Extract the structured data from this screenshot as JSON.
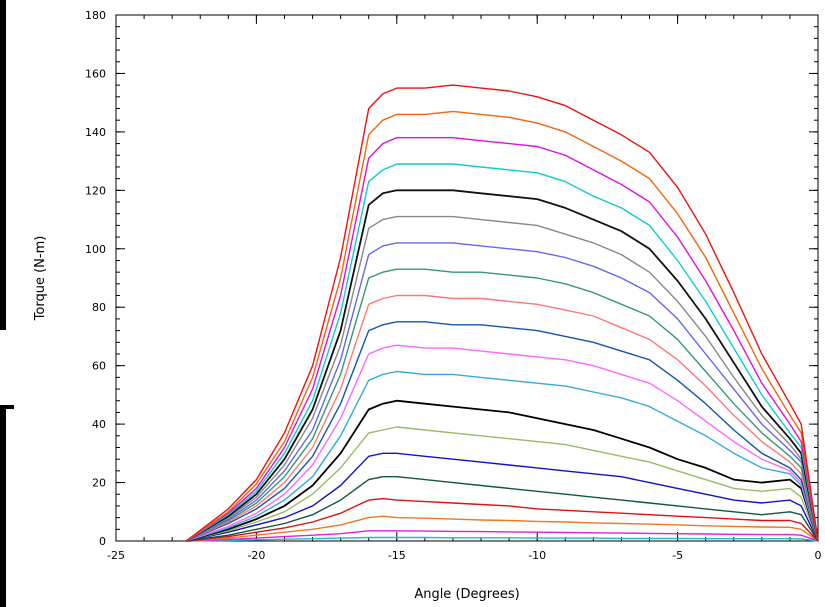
{
  "chart_data": {
    "type": "line",
    "title": "",
    "xlabel": "Angle (Degrees)",
    "ylabel": "Torque (N-m)",
    "xlim": [
      -25,
      0
    ],
    "ylim": [
      0,
      180
    ],
    "xticks": [
      -25,
      -20,
      -15,
      -10,
      -5,
      0
    ],
    "yticks": [
      0,
      20,
      40,
      60,
      80,
      100,
      120,
      140,
      160,
      180
    ],
    "grid": false,
    "legend": "none",
    "x": [
      -22.5,
      -21,
      -20,
      -19,
      -18,
      -17,
      -16,
      -15.5,
      -15,
      -14,
      -13,
      -12,
      -11,
      -10,
      -9,
      -8,
      -7,
      -6,
      -5,
      -4,
      -3,
      -2,
      -1,
      -0.6,
      0
    ],
    "series": [
      {
        "color": "#ee1111",
        "values": [
          0,
          11,
          21,
          37,
          60,
          97,
          148,
          153,
          155,
          155,
          156,
          155,
          154,
          152,
          149,
          144,
          139,
          133,
          121,
          105,
          85,
          64,
          47,
          40,
          0
        ]
      },
      {
        "color": "#ee6611",
        "values": [
          0,
          10,
          19.5,
          34,
          56,
          90,
          139,
          144,
          146,
          146,
          147,
          146,
          145,
          143,
          140,
          135,
          130,
          124,
          112,
          97,
          78,
          59,
          43,
          37,
          0
        ]
      },
      {
        "color": "#dd11dd",
        "values": [
          0,
          9.5,
          18,
          32,
          52,
          84,
          131,
          136,
          138,
          138,
          138,
          137,
          136,
          135,
          132,
          127,
          122,
          116,
          104,
          89,
          72,
          54,
          40,
          34,
          0
        ]
      },
      {
        "color": "#11cccc",
        "values": [
          0,
          9,
          17,
          30,
          48,
          78,
          123,
          127,
          129,
          129,
          129,
          128,
          127,
          126,
          123,
          118,
          114,
          108,
          96,
          82,
          66,
          50,
          37,
          32,
          0
        ]
      },
      {
        "color": "#111111",
        "values": [
          0,
          8.5,
          16,
          28,
          45,
          72,
          115,
          119,
          120,
          120,
          120,
          119,
          118,
          117,
          114,
          110,
          106,
          100,
          89,
          76,
          61,
          46,
          35,
          30,
          0
        ]
      },
      {
        "color": "#888888",
        "values": [
          0,
          8,
          15,
          26,
          42,
          67,
          107,
          110,
          111,
          111,
          111,
          110,
          109,
          108,
          105,
          102,
          98,
          92,
          82,
          70,
          56,
          43,
          33,
          28,
          0
        ]
      },
      {
        "color": "#6666ee",
        "values": [
          0,
          7.5,
          14,
          24,
          38,
          62,
          98,
          101,
          102,
          102,
          102,
          101,
          100,
          99,
          97,
          94,
          90,
          85,
          76,
          64,
          52,
          40,
          31,
          27,
          0
        ]
      },
      {
        "color": "#339977",
        "values": [
          0,
          7,
          13,
          22,
          35,
          57,
          90,
          92,
          93,
          93,
          92,
          92,
          91,
          90,
          88,
          85,
          81,
          77,
          69,
          58,
          47,
          37,
          29,
          25,
          0
        ]
      },
      {
        "color": "#ff7777",
        "values": [
          0,
          6.5,
          12,
          20,
          32,
          52,
          81,
          83,
          84,
          84,
          83,
          83,
          82,
          81,
          79,
          77,
          73,
          69,
          62,
          53,
          43,
          34,
          27,
          23,
          0
        ]
      },
      {
        "color": "#1155aa",
        "values": [
          0,
          6,
          11,
          18,
          29,
          47,
          72,
          74,
          75,
          75,
          74,
          74,
          73,
          72,
          70,
          68,
          65,
          62,
          55,
          47,
          38,
          30,
          25,
          21,
          0
        ]
      },
      {
        "color": "#ff66ff",
        "values": [
          0,
          5,
          9.5,
          16,
          26,
          42,
          64,
          66,
          67,
          66,
          66,
          65,
          64,
          63,
          62,
          60,
          57,
          54,
          48,
          41,
          34,
          28,
          24,
          20,
          0
        ]
      },
      {
        "color": "#33aadd",
        "values": [
          0,
          4.5,
          8.5,
          14,
          22,
          36,
          55,
          57,
          58,
          57,
          57,
          56,
          55,
          54,
          53,
          51,
          49,
          46,
          41,
          36,
          30,
          25,
          23,
          19,
          0
        ]
      },
      {
        "color": "#000000",
        "values": [
          0,
          4,
          7.5,
          12,
          19,
          30,
          45,
          47,
          48,
          47,
          46,
          45,
          44,
          42,
          40,
          38,
          35,
          32,
          28,
          25,
          21,
          20,
          21,
          18,
          0
        ]
      },
      {
        "color": "#99bb66",
        "values": [
          0,
          3.5,
          6.5,
          10,
          16,
          25,
          37,
          38,
          39,
          38,
          37,
          36,
          35,
          34,
          33,
          31,
          29,
          27,
          24,
          21,
          18,
          17,
          18,
          15,
          0
        ]
      },
      {
        "color": "#1111cc",
        "values": [
          0,
          3,
          5.5,
          8,
          12,
          19,
          29,
          30,
          30,
          29,
          28,
          27,
          26,
          25,
          24,
          23,
          22,
          20,
          18,
          16,
          14,
          13,
          14,
          12,
          0
        ]
      },
      {
        "color": "#115544",
        "values": [
          0,
          2,
          4,
          6,
          9,
          14,
          21,
          22,
          22,
          21,
          20,
          19,
          18,
          17,
          16,
          15,
          14,
          13,
          12,
          11,
          10,
          9,
          10,
          9,
          0
        ]
      },
      {
        "color": "#dd1111",
        "values": [
          0,
          1.5,
          3,
          4.5,
          6.5,
          9.5,
          14,
          14.5,
          14,
          13.5,
          13,
          12.5,
          12,
          11,
          10.5,
          10,
          9.5,
          9,
          8.5,
          8,
          7.5,
          7,
          7,
          6,
          0
        ]
      },
      {
        "color": "#ee7722",
        "values": [
          0,
          1,
          2,
          3,
          4,
          5.5,
          8,
          8.5,
          8,
          7.8,
          7.5,
          7.2,
          7,
          6.7,
          6.5,
          6.2,
          6,
          5.8,
          5.5,
          5.2,
          5,
          4.8,
          4.7,
          4,
          0
        ]
      },
      {
        "color": "#dd22dd",
        "values": [
          0,
          0.5,
          1,
          1.5,
          2,
          2.5,
          3.5,
          3.5,
          3.5,
          3.4,
          3.3,
          3.2,
          3.1,
          3,
          2.9,
          2.8,
          2.7,
          2.6,
          2.5,
          2.4,
          2.3,
          2.2,
          2.2,
          2,
          0
        ]
      },
      {
        "color": "#22bbcc",
        "values": [
          0,
          0.2,
          0.4,
          0.6,
          0.8,
          1,
          1.2,
          1.2,
          1.2,
          1.2,
          1.1,
          1.1,
          1.1,
          1,
          1,
          1,
          0.9,
          0.9,
          0.9,
          0.8,
          0.8,
          0.8,
          0.8,
          0.7,
          0
        ]
      }
    ]
  }
}
